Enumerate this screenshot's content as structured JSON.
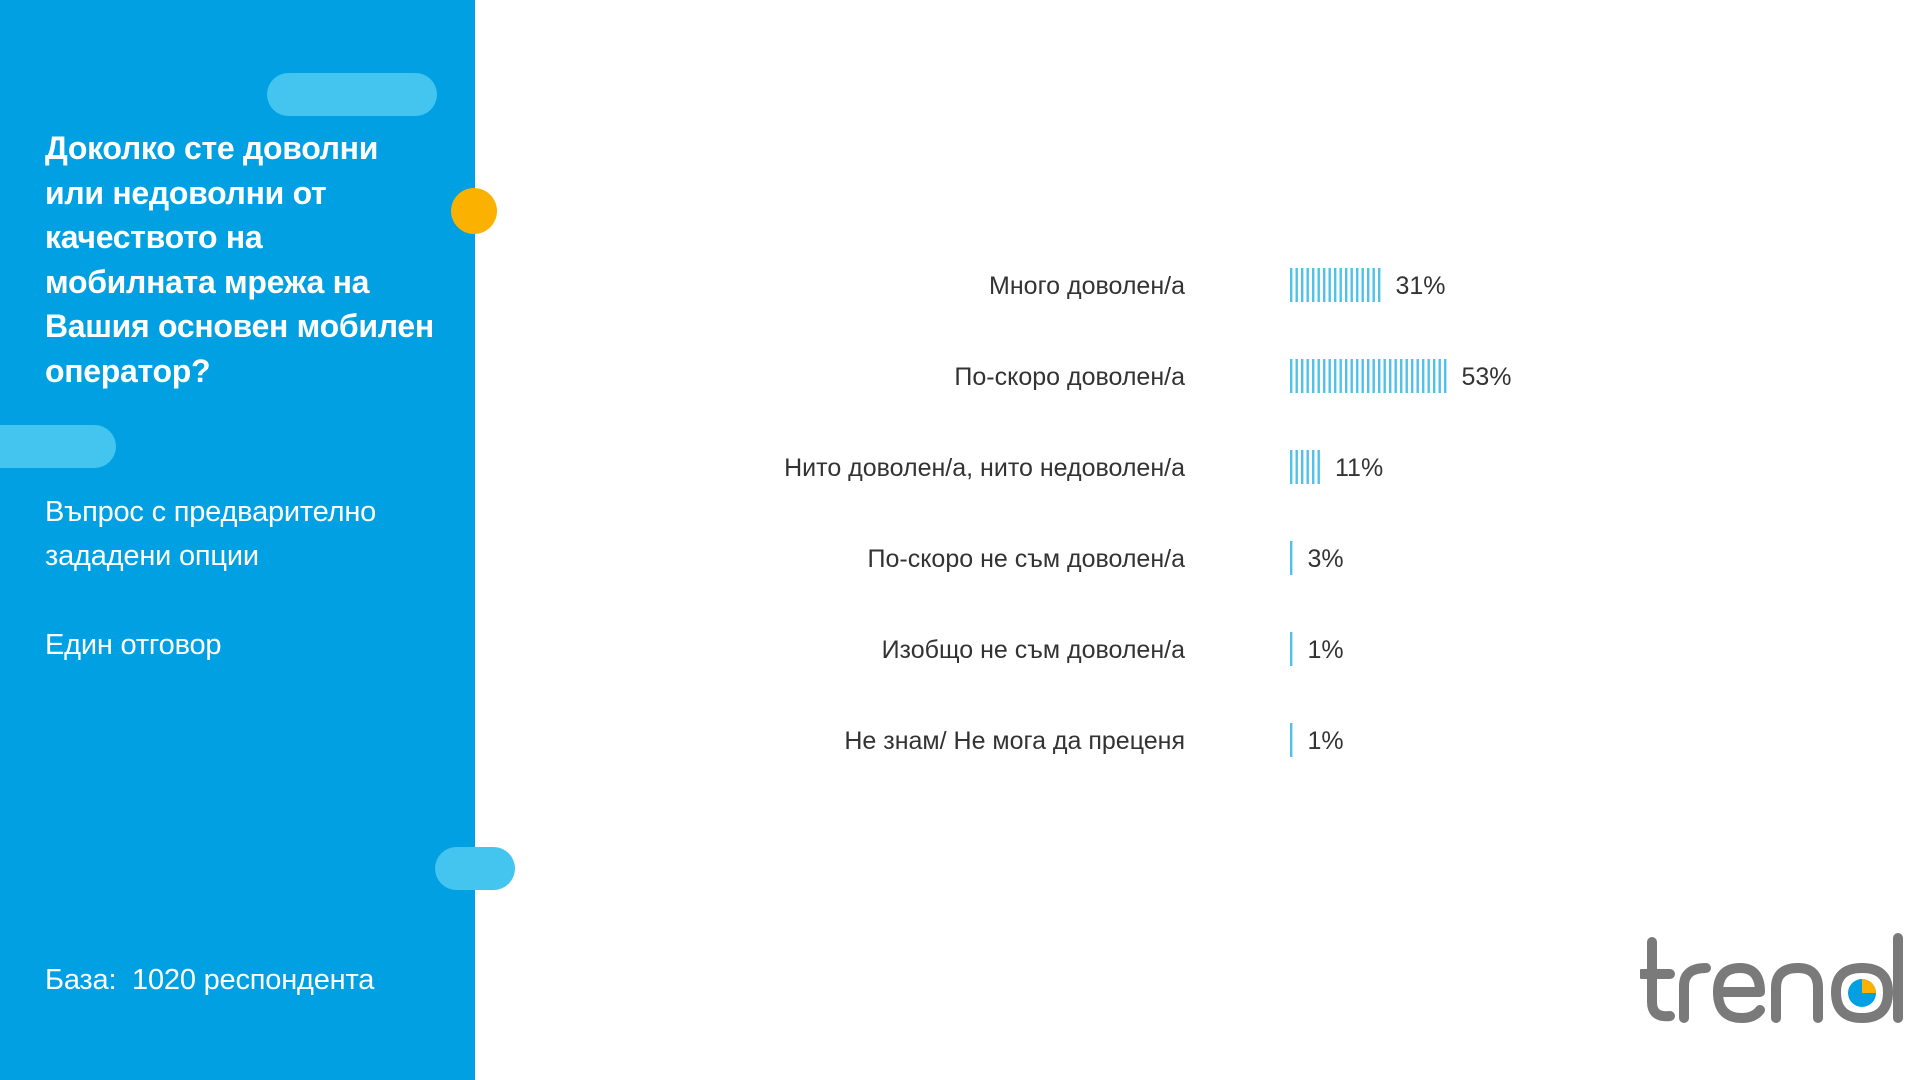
{
  "sidebar": {
    "question": "Доколко сте доволни или недоволни от качеството на мобилната мрежа на Вашия основен мобилен оператор?",
    "question_type": "Въпрос с предварително зададени опции",
    "answer_type": "Един отговор",
    "base": "База:  1020 респондента"
  },
  "logo": {
    "text": "trend"
  },
  "colors": {
    "panel": "#00a0e3",
    "pill": "#43c5ef",
    "dot": "#fbb100",
    "bar": "#4fc1ea",
    "logo_text": "#7a7a7a"
  },
  "chart_data": {
    "type": "bar",
    "orientation": "horizontal",
    "categories": [
      "Много доволен/а",
      "По-скоро доволен/а",
      "Нито доволен/а, нито недоволен/а",
      "По-скоро не съм доволен/а",
      "Изобщо не съм доволен/а",
      "Не знам/ Не мога да преценя"
    ],
    "values": [
      31,
      53,
      11,
      3,
      1,
      1
    ],
    "value_labels": [
      "31%",
      "53%",
      "11%",
      "3%",
      "1%",
      "1%"
    ],
    "unit": "%",
    "xlim": [
      0,
      100
    ],
    "grid": false,
    "legend": "none"
  }
}
